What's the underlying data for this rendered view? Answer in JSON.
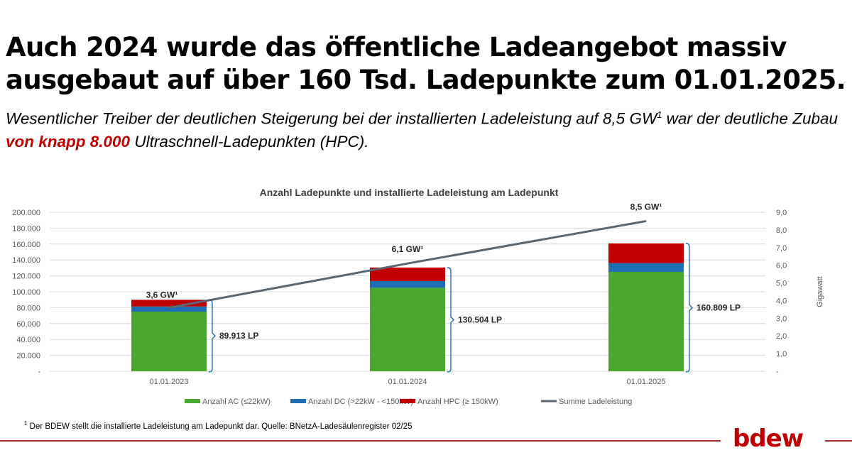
{
  "headline": {
    "line1": "Auch 2024 wurde das öffentliche Ladeangebot massiv",
    "line2": "ausgebaut auf über 160 Tsd. Ladepunkte zum 01.01.2025."
  },
  "subline": {
    "part1": "Wesentlicher Treiber der deutlichen Steigerung bei der installierten Ladeleistung auf 8,5 GW",
    "sup": "1",
    "part2": " war der deutliche Zubau ",
    "highlight": "von knapp 8.000",
    "part3": " Ultraschnell-Ladepunkten (HPC)."
  },
  "colors": {
    "ac": "#4aa82e",
    "dc": "#1f6db3",
    "hpc": "#c00000",
    "line": "#5a6670",
    "grid": "#d9d9d9",
    "bracket": "#2e75b6",
    "accent": "#c00000"
  },
  "chart_data": {
    "type": "bar",
    "title": "Anzahl Ladepunkte und installierte Ladeleistung am Ladepunkt",
    "categories": [
      "01.01.2023",
      "01.01.2024",
      "01.01.2025"
    ],
    "series": [
      {
        "name": "Anzahl AC (≤22kW)",
        "key": "ac",
        "values": [
          75000,
          105000,
          125000
        ]
      },
      {
        "name": "Anzahl DC (>22kW - <150kW)",
        "key": "dc",
        "values": [
          6500,
          8500,
          11000
        ]
      },
      {
        "name": "Anzahl HPC (≥ 150kW)",
        "key": "hpc",
        "values": [
          8413,
          17004,
          24809
        ]
      }
    ],
    "line_series": {
      "name": "Summe Ladeleistung",
      "values": [
        3.6,
        6.1,
        8.5
      ],
      "labels": [
        "3,6 GW¹",
        "6,1 GW¹",
        "8,5 GW¹"
      ]
    },
    "totals": [
      89913,
      130504,
      160809
    ],
    "total_labels": [
      "89.913 LP",
      "130.504 LP",
      "160.809 LP"
    ],
    "y_left": {
      "label": "",
      "ylim": [
        0,
        200000
      ],
      "ticks": [
        "-",
        "20.000",
        "40.000",
        "60.000",
        "80.000",
        "100.000",
        "120.000",
        "140.000",
        "160.000",
        "180.000",
        "200.000"
      ]
    },
    "y_right": {
      "label": "Gigawatt",
      "ylim": [
        0,
        9
      ],
      "ticks": [
        "-",
        "1,0",
        "2,0",
        "3,0",
        "4,0",
        "5,0",
        "6,0",
        "7,0",
        "8,0",
        "9,0"
      ]
    },
    "grid": true,
    "legend": "bottom"
  },
  "footnote": {
    "sup": "1",
    "text": " Der BDEW stellt die installierte Ladeleistung am Ladepunkt dar. Quelle: BNetzA-Ladesäulenregister 02/25"
  },
  "logo": "bdew"
}
